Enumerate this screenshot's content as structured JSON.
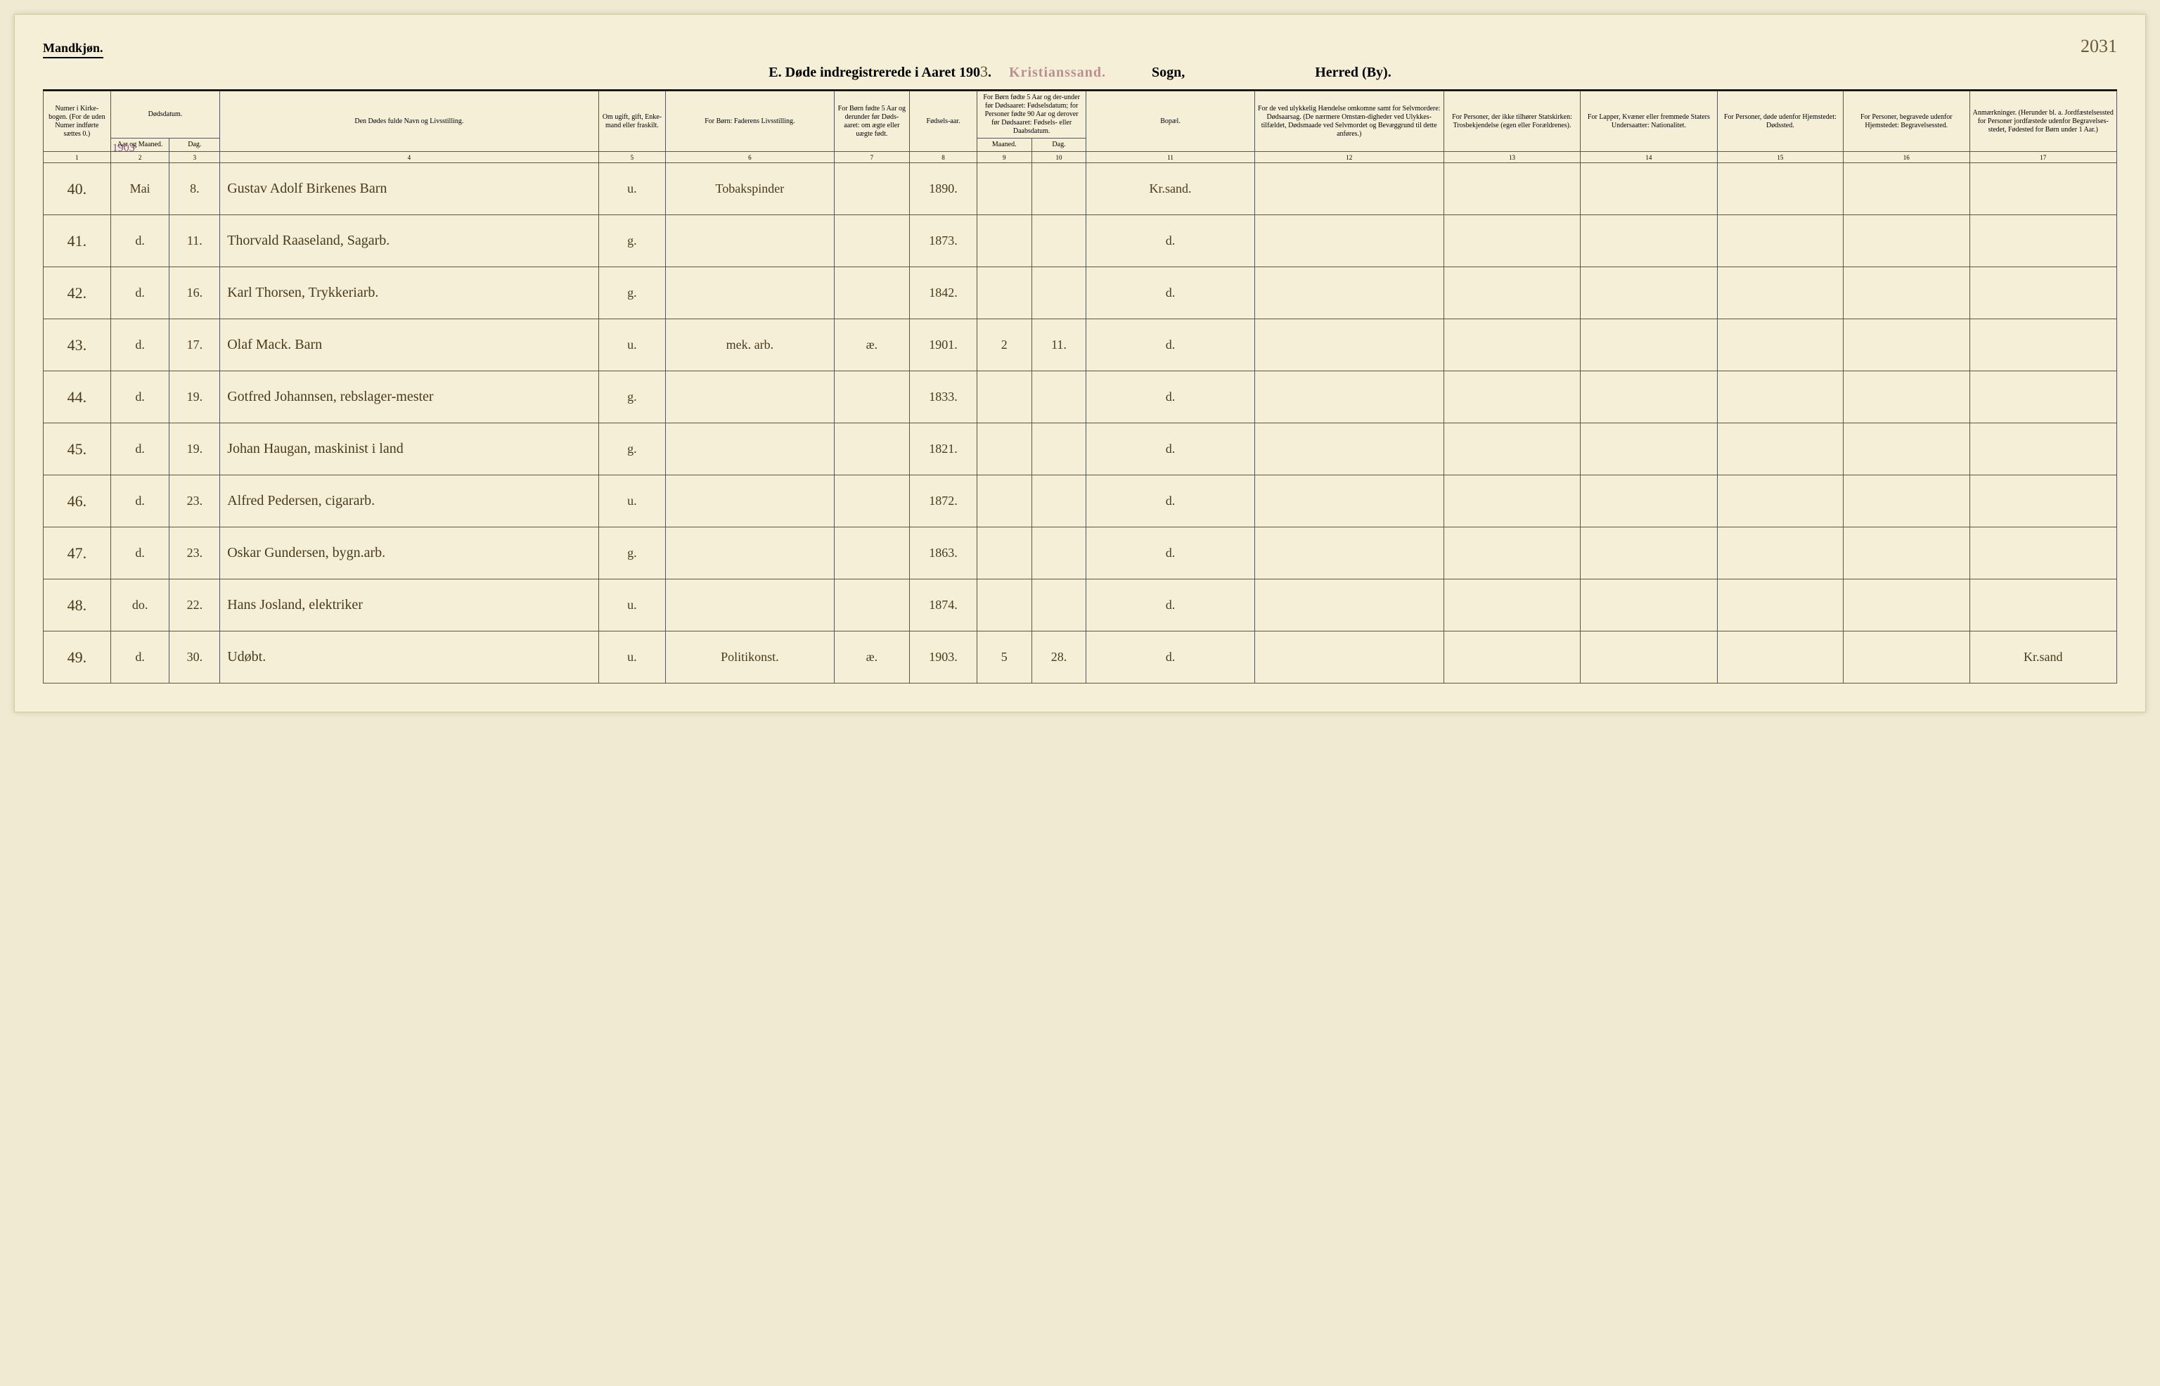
{
  "header": {
    "gender": "Mandkjøn.",
    "page_number": "2031",
    "title_prefix": "E.  Døde indregistrerede i Aaret 190",
    "title_year_hw": "3",
    "title_period": ".",
    "parish_stamp": "Kristianssand.",
    "sogn_label": "Sogn,",
    "herred_label": "Herred (By)."
  },
  "columns": {
    "h1": "Numer i Kirke-bogen. (For de uden Numer indførte sættes 0.)",
    "h2": "Dødsdatum.",
    "h2a": "Aar og Maaned.",
    "h2b": "Dag.",
    "h4": "Den Dødes fulde Navn og Livsstilling.",
    "h5": "Om ugift, gift, Enke-mand eller fraskilt.",
    "h6": "For Børn: Faderens Livsstilling.",
    "h7": "For Børn fødte 5 Aar og derunder før Døds-aaret: om ægte eller uægte født.",
    "h8": "Fødsels-aar.",
    "h9_10": "For Børn fødte 5 Aar og der-under før Dødsaaret: Fødselsdatum; for Personer fødte 90 Aar og derover før Dødsaaret: Fødsels- eller Daabsdatum.",
    "h9": "Maaned.",
    "h10": "Dag.",
    "h11": "Bopæl.",
    "h12": "For de ved ulykkelig Hændelse omkomne samt for Selvmordere: Dødsaarsag. (De nærmere Omstæn-digheder ved Ulykkes-tilfældet, Dødsmaade ved Selvmordet og Bevæggrund til dette anføres.)",
    "h13": "For Personer, der ikke tilhører Statskirken: Trosbekjendelse (egen eller Forældrenes).",
    "h14": "For Lapper, Kvæner eller fremmede Staters Undersaatter: Nationalitet.",
    "h15": "For Personer, døde udenfor Hjemstedet: Dødssted.",
    "h16": "For Personer, begravede udenfor Hjemstedet: Begravelsessted.",
    "h17": "Anmærkninger. (Herunder bl. a. Jordfæstelsessted for Personer jordfæstede udenfor Begravelses-stedet, Fødested for Børn under 1 Aar.)"
  },
  "colnums": [
    "1",
    "2",
    "3",
    "4",
    "5",
    "6",
    "7",
    "8",
    "9",
    "10",
    "11",
    "12",
    "13",
    "14",
    "15",
    "16",
    "17"
  ],
  "year_above_first": "1903",
  "rows": [
    {
      "n": "40.",
      "mo": "Mai",
      "d": "8.",
      "name": "Gustav Adolf Birkenes  Barn",
      "ms": "u.",
      "father": "Tobakspinder",
      "leg": "",
      "yr": "1890.",
      "bm": "",
      "bd": "",
      "res": "Kr.sand.",
      "c12": "",
      "c13": "",
      "c14": "",
      "c15": "",
      "c16": "",
      "c17": ""
    },
    {
      "n": "41.",
      "mo": "d.",
      "d": "11.",
      "name": "Thorvald Raaseland, Sagarb.",
      "ms": "g.",
      "father": "",
      "leg": "",
      "yr": "1873.",
      "bm": "",
      "bd": "",
      "res": "d.",
      "c12": "",
      "c13": "",
      "c14": "",
      "c15": "",
      "c16": "",
      "c17": ""
    },
    {
      "n": "42.",
      "mo": "d.",
      "d": "16.",
      "name": "Karl Thorsen, Trykkeriarb.",
      "ms": "g.",
      "father": "",
      "leg": "",
      "yr": "1842.",
      "bm": "",
      "bd": "",
      "res": "d.",
      "c12": "",
      "c13": "",
      "c14": "",
      "c15": "",
      "c16": "",
      "c17": ""
    },
    {
      "n": "43.",
      "mo": "d.",
      "d": "17.",
      "name": "Olaf Mack.  Barn",
      "ms": "u.",
      "father": "mek. arb.",
      "leg": "æ.",
      "yr": "1901.",
      "bm": "2",
      "bd": "11.",
      "res": "d.",
      "c12": "",
      "c13": "",
      "c14": "",
      "c15": "",
      "c16": "",
      "c17": ""
    },
    {
      "n": "44.",
      "mo": "d.",
      "d": "19.",
      "name": "Gotfred Johannsen, rebslager-mester",
      "ms": "g.",
      "father": "",
      "leg": "",
      "yr": "1833.",
      "bm": "",
      "bd": "",
      "res": "d.",
      "c12": "",
      "c13": "",
      "c14": "",
      "c15": "",
      "c16": "",
      "c17": ""
    },
    {
      "n": "45.",
      "mo": "d.",
      "d": "19.",
      "name": "Johan Haugan, maskinist i land",
      "ms": "g.",
      "father": "",
      "leg": "",
      "yr": "1821.",
      "bm": "",
      "bd": "",
      "res": "d.",
      "c12": "",
      "c13": "",
      "c14": "",
      "c15": "",
      "c16": "",
      "c17": ""
    },
    {
      "n": "46.",
      "mo": "d.",
      "d": "23.",
      "name": "Alfred Pedersen, cigararb.",
      "ms": "u.",
      "father": "",
      "leg": "",
      "yr": "1872.",
      "bm": "",
      "bd": "",
      "res": "d.",
      "c12": "",
      "c13": "",
      "c14": "",
      "c15": "",
      "c16": "",
      "c17": ""
    },
    {
      "n": "47.",
      "mo": "d.",
      "d": "23.",
      "name": "Oskar Gundersen, bygn.arb.",
      "ms": "g.",
      "father": "",
      "leg": "",
      "yr": "1863.",
      "bm": "",
      "bd": "",
      "res": "d.",
      "c12": "",
      "c13": "",
      "c14": "",
      "c15": "",
      "c16": "",
      "c17": ""
    },
    {
      "n": "48.",
      "mo": "do.",
      "d": "22.",
      "name": "Hans Josland, elektriker",
      "ms": "u.",
      "father": "",
      "leg": "",
      "yr": "1874.",
      "bm": "",
      "bd": "",
      "res": "d.",
      "c12": "",
      "c13": "",
      "c14": "",
      "c15": "",
      "c16": "",
      "c17": ""
    },
    {
      "n": "49.",
      "mo": "d.",
      "d": "30.",
      "name": "Udøbt.",
      "ms": "u.",
      "father": "Politikonst.",
      "leg": "æ.",
      "yr": "1903.",
      "bm": "5",
      "bd": "28.",
      "res": "d.",
      "c12": "",
      "c13": "",
      "c14": "",
      "c15": "",
      "c16": "",
      "c17": "Kr.sand"
    }
  ]
}
